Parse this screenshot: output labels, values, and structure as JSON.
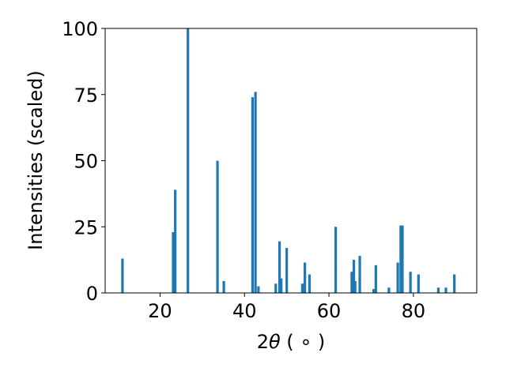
{
  "chart_data": {
    "type": "bar",
    "xlabel_prefix": "2",
    "xlabel_symbol": "θ",
    "xlabel_unit": " ( ∘ )",
    "ylabel": "Intensities (scaled)",
    "xlim": [
      7,
      95
    ],
    "ylim": [
      0,
      100
    ],
    "x_ticks": [
      20,
      40,
      60,
      80
    ],
    "y_ticks": [
      0,
      25,
      50,
      75,
      100
    ],
    "bar_color": "#1f77b4",
    "bar_width_deg": 0.6,
    "grid": false,
    "legend": "none",
    "x": [
      11.1,
      23.1,
      23.6,
      26.6,
      33.6,
      35.1,
      41.9,
      42.6,
      43.3,
      47.4,
      48.3,
      48.7,
      50.0,
      53.7,
      54.3,
      55.4,
      61.6,
      65.4,
      65.9,
      66.2,
      67.3,
      70.6,
      71.1,
      74.2,
      76.3,
      77.0,
      77.4,
      79.3,
      81.2,
      85.9,
      87.7,
      89.7
    ],
    "values": [
      13,
      23,
      39,
      100,
      50,
      4.5,
      74,
      76,
      2.5,
      3.5,
      19.5,
      5.5,
      17,
      3.5,
      11.5,
      7,
      25,
      8,
      12.5,
      4.5,
      14,
      1.5,
      10.5,
      2,
      11.5,
      25.5,
      25.5,
      8,
      7,
      2,
      2,
      7
    ]
  }
}
